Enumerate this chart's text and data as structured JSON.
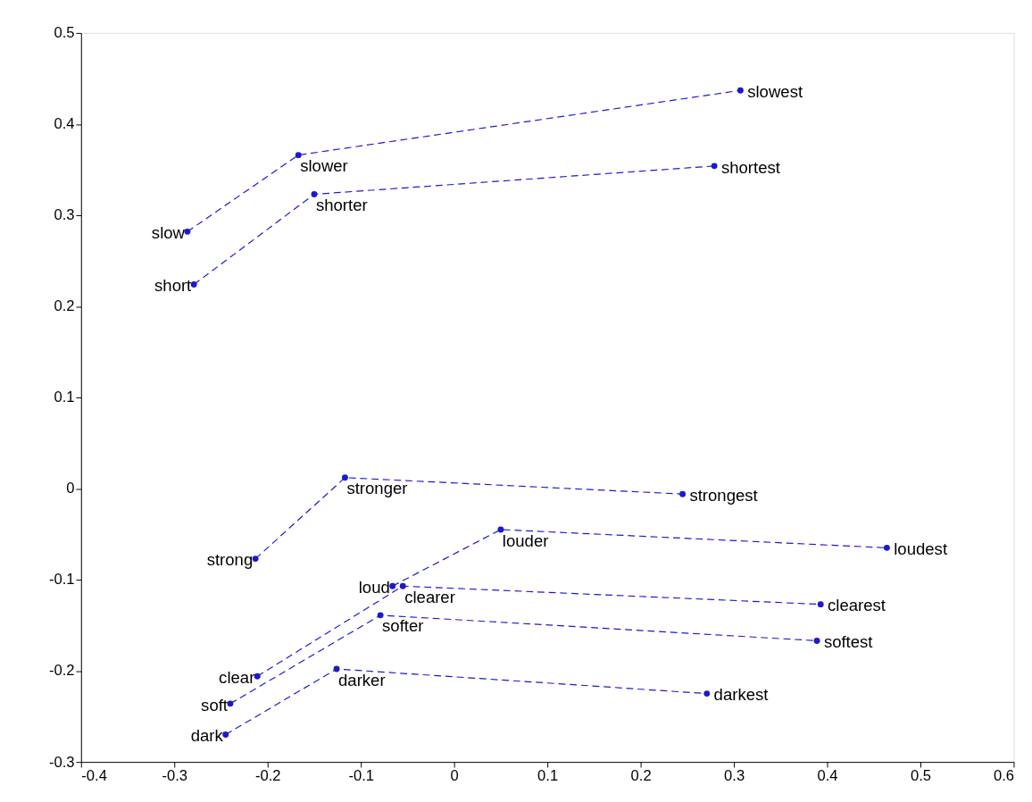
{
  "chart_data": {
    "type": "line",
    "marker": "circle",
    "line_style": "dashed",
    "grid": false,
    "legend": false,
    "xlim": [
      -0.4,
      0.6
    ],
    "xticks": [
      -0.4,
      -0.3,
      -0.2,
      -0.1,
      0,
      0.1,
      0.2,
      0.3,
      0.4,
      0.5,
      0.6
    ],
    "ylim": [
      -0.3,
      0.5
    ],
    "yticks": [
      -0.3,
      -0.2,
      -0.1,
      0,
      0.1,
      0.2,
      0.3,
      0.4,
      0.5
    ],
    "series": [
      {
        "color": "#1a1acc",
        "x": [
          -0.286,
          -0.167,
          0.307
        ],
        "values": [
          0.282,
          0.366,
          0.437
        ]
      },
      {
        "color": "#1a1acc",
        "x": [
          -0.279,
          -0.15,
          0.279
        ],
        "values": [
          0.224,
          0.323,
          0.354
        ]
      },
      {
        "color": "#1a1acc",
        "x": [
          -0.213,
          -0.117,
          0.245
        ],
        "values": [
          -0.077,
          0.012,
          -0.006
        ]
      },
      {
        "color": "#1a1acc",
        "x": [
          -0.066,
          0.05,
          0.464
        ],
        "values": [
          -0.107,
          -0.045,
          -0.065
        ]
      },
      {
        "color": "#1a1acc",
        "x": [
          -0.211,
          -0.055,
          0.393
        ],
        "values": [
          -0.206,
          -0.107,
          -0.127
        ]
      },
      {
        "color": "#1a1acc",
        "x": [
          -0.24,
          -0.079,
          0.389
        ],
        "values": [
          -0.236,
          -0.139,
          -0.167
        ]
      },
      {
        "color": "#1a1acc",
        "x": [
          -0.245,
          -0.126,
          0.271
        ],
        "values": [
          -0.27,
          -0.198,
          -0.225
        ]
      }
    ],
    "annotations": [
      {
        "text": "slow",
        "x": -0.286,
        "y": 0.282
      },
      {
        "text": "slower",
        "x": -0.167,
        "y": 0.366
      },
      {
        "text": "slowest",
        "x": 0.307,
        "y": 0.437
      },
      {
        "text": "short",
        "x": -0.279,
        "y": 0.224
      },
      {
        "text": "shorter",
        "x": -0.15,
        "y": 0.323
      },
      {
        "text": "shortest",
        "x": 0.279,
        "y": 0.354
      },
      {
        "text": "strong",
        "x": -0.213,
        "y": -0.077
      },
      {
        "text": "stronger",
        "x": -0.117,
        "y": 0.012
      },
      {
        "text": "strongest",
        "x": 0.245,
        "y": -0.006
      },
      {
        "text": "loud",
        "x": -0.066,
        "y": -0.107
      },
      {
        "text": "louder",
        "x": 0.05,
        "y": -0.045
      },
      {
        "text": "loudest",
        "x": 0.464,
        "y": -0.065
      },
      {
        "text": "clear",
        "x": -0.211,
        "y": -0.206
      },
      {
        "text": "clearer",
        "x": -0.055,
        "y": -0.107
      },
      {
        "text": "clearest",
        "x": 0.393,
        "y": -0.127
      },
      {
        "text": "soft",
        "x": -0.24,
        "y": -0.236
      },
      {
        "text": "softer",
        "x": -0.079,
        "y": -0.139
      },
      {
        "text": "softest",
        "x": 0.389,
        "y": -0.167
      },
      {
        "text": "dark",
        "x": -0.245,
        "y": -0.27
      },
      {
        "text": "darker",
        "x": -0.126,
        "y": -0.198
      },
      {
        "text": "darkest",
        "x": 0.271,
        "y": -0.225
      }
    ]
  }
}
